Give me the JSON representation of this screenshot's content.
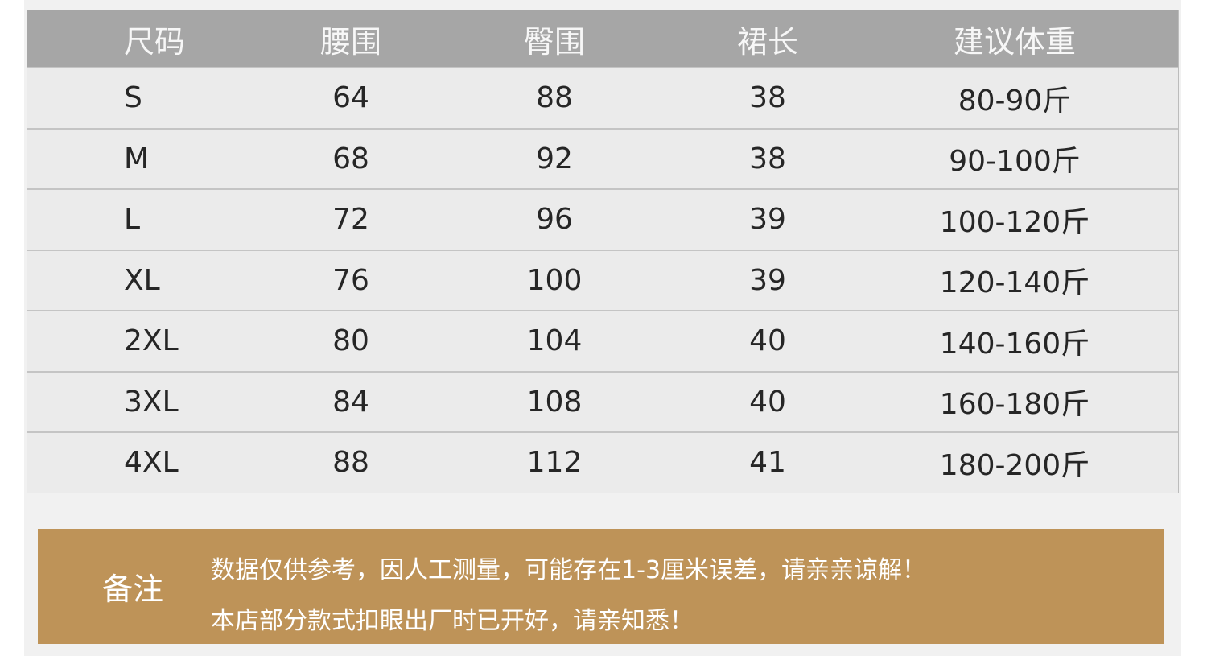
{
  "table": {
    "header": [
      "尺码",
      "腰围",
      "臀围",
      "裙长",
      "建议体重"
    ],
    "rows": [
      [
        "S",
        "64",
        "88",
        "38",
        "80-90斤"
      ],
      [
        "M",
        "68",
        "92",
        "38",
        "90-100斤"
      ],
      [
        "L",
        "72",
        "96",
        "39",
        "100-120斤"
      ],
      [
        "XL",
        "76",
        "100",
        "39",
        "120-140斤"
      ],
      [
        "2XL",
        "80",
        "104",
        "40",
        "140-160斤"
      ],
      [
        "3XL",
        "84",
        "108",
        "40",
        "160-180斤"
      ],
      [
        "4XL",
        "88",
        "112",
        "41",
        "180-200斤"
      ]
    ]
  },
  "note": {
    "label": "备注",
    "lines": [
      "数据仅供参考，因人工测量，可能存在1-3厘米误差，请亲亲谅解！",
      "本店部分款式扣眼出厂时已开好，请亲知悉！"
    ]
  }
}
